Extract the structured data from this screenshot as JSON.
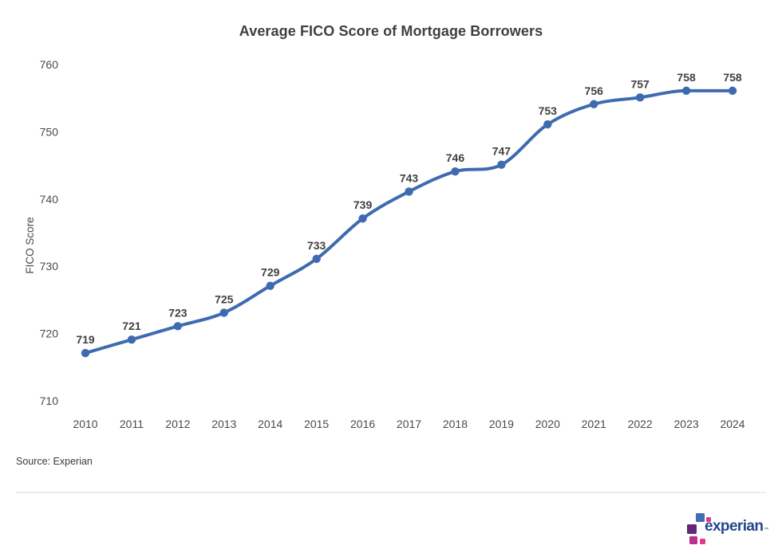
{
  "header": {
    "title": "Average FICO Score of Mortgage Borrowers"
  },
  "chart_data": {
    "type": "line",
    "title": "Average FICO Score of Mortgage Borrowers",
    "xlabel": "",
    "ylabel": "FICO Score",
    "categories": [
      "2010",
      "2011",
      "2012",
      "2013",
      "2014",
      "2015",
      "2016",
      "2017",
      "2018",
      "2019",
      "2020",
      "2021",
      "2022",
      "2023",
      "2024"
    ],
    "values": [
      719,
      721,
      723,
      725,
      729,
      733,
      739,
      743,
      746,
      747,
      753,
      756,
      757,
      758,
      758
    ],
    "series_name": "Average FICO Score",
    "ylim": [
      710,
      760
    ],
    "yticks": [
      710,
      720,
      730,
      740,
      750,
      760
    ],
    "grid": false,
    "legend_position": "none",
    "data_labels_shown": true,
    "curve": "smooth",
    "line_color": "#3e6bb0",
    "point_color": "#3e6bb0"
  },
  "footer": {
    "source_label": "Source: Experian",
    "logo": {
      "brand_text": "experian",
      "trademark_symbol": "™",
      "text_color": "#26478d",
      "square_colors": [
        "#406eb3",
        "#e63888",
        "#632678",
        "#ba2e8d",
        "#e63888"
      ]
    }
  },
  "colors": {
    "background": "#ffffff",
    "title_text": "#3f3f3f",
    "axis_text": "#4a4a4a",
    "data_label_text": "#404040",
    "divider": "#ededed"
  }
}
